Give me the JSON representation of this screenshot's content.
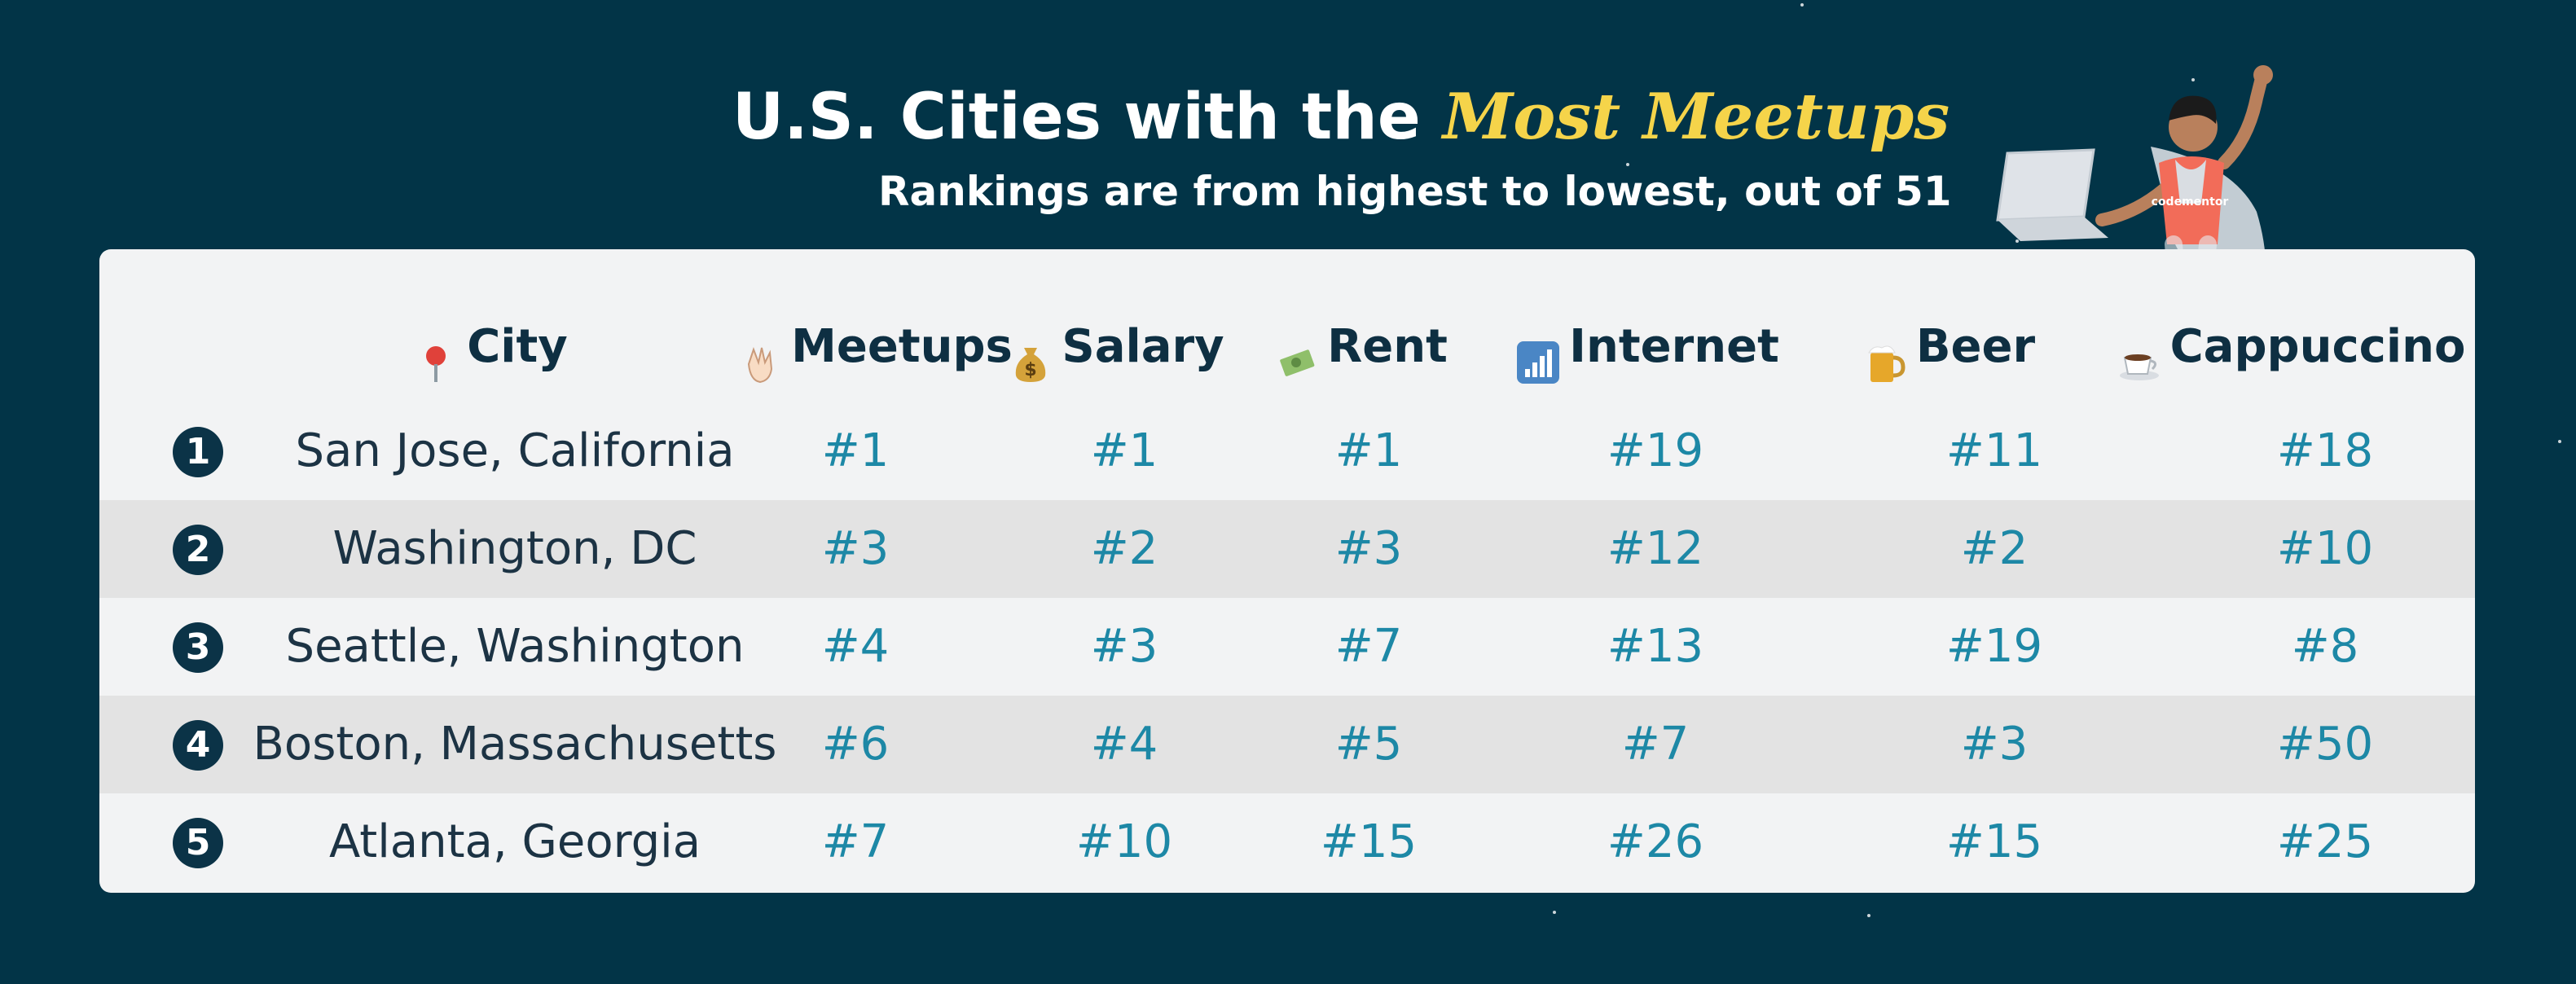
{
  "title": {
    "prefix": "U.S. Cities with the ",
    "highlight": "Most Meetups"
  },
  "subtitle": "Rankings are from highest to lowest, out of 51",
  "columns": [
    {
      "label": "City",
      "icon": "map-pin-icon"
    },
    {
      "label": "Meetups",
      "icon": "waving-hand-icon"
    },
    {
      "label": "Salary",
      "icon": "money-bag-icon"
    },
    {
      "label": "Rent",
      "icon": "flying-money-icon"
    },
    {
      "label": "Internet",
      "icon": "signal-bars-icon"
    },
    {
      "label": "Beer",
      "icon": "beer-mug-icon"
    },
    {
      "label": "Cappuccino",
      "icon": "coffee-cup-icon"
    }
  ],
  "rows": [
    {
      "rank": "1",
      "city": "San Jose, California",
      "meetups": "#1",
      "salary": "#1",
      "rent": "#1",
      "internet": "#19",
      "beer": "#11",
      "cappuccino": "#18"
    },
    {
      "rank": "2",
      "city": "Washington, DC",
      "meetups": "#3",
      "salary": "#2",
      "rent": "#3",
      "internet": "#12",
      "beer": "#2",
      "cappuccino": "#10"
    },
    {
      "rank": "3",
      "city": "Seattle, Washington",
      "meetups": "#4",
      "salary": "#3",
      "rent": "#7",
      "internet": "#13",
      "beer": "#19",
      "cappuccino": "#8"
    },
    {
      "rank": "4",
      "city": "Boston, Massachusetts",
      "meetups": "#6",
      "salary": "#4",
      "rent": "#5",
      "internet": "#7",
      "beer": "#3",
      "cappuccino": "#50"
    },
    {
      "rank": "5",
      "city": "Atlanta, Georgia",
      "meetups": "#7",
      "salary": "#10",
      "rent": "#15",
      "internet": "#26",
      "beer": "#15",
      "cappuccino": "#25"
    }
  ],
  "mascot": {
    "shirt_text": "codementor"
  },
  "colors": {
    "background": "#023447",
    "highlight": "#f5d44a",
    "value": "#1d88a6",
    "card": "#f2f3f4",
    "row_shade": "#e3e3e3"
  }
}
